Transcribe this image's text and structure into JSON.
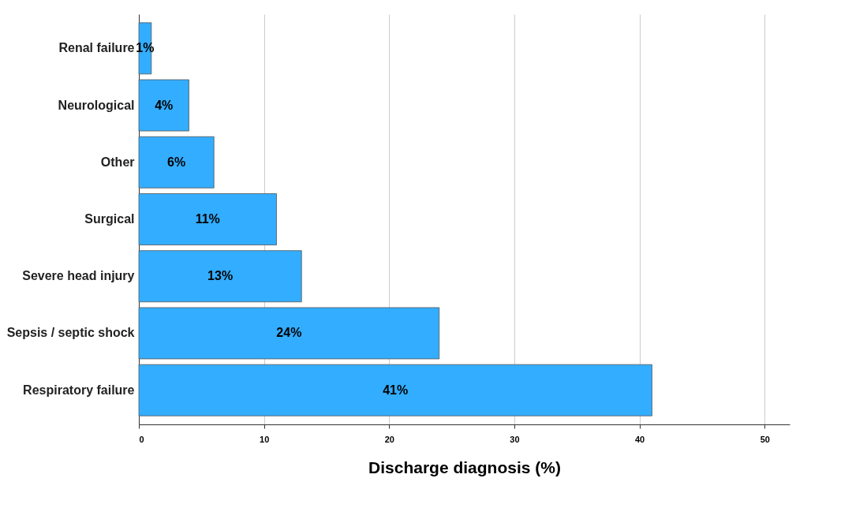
{
  "chart_data": {
    "type": "bar",
    "orientation": "horizontal",
    "xlabel": "Discharge diagnosis (%)",
    "categories": [
      "Renal failure",
      "Neurological",
      "Other",
      "Surgical",
      "Severe head injury",
      "Sepsis / septic shock",
      "Respiratory failure"
    ],
    "values": [
      1,
      4,
      6,
      11,
      13,
      24,
      41
    ],
    "value_labels": [
      "1%",
      "4%",
      "6%",
      "11%",
      "13%",
      "24%",
      "41%"
    ],
    "color": "#33adff",
    "xlim": [
      0,
      52
    ],
    "xticks": [
      0,
      10,
      20,
      30,
      40,
      50
    ],
    "grid": "x"
  }
}
